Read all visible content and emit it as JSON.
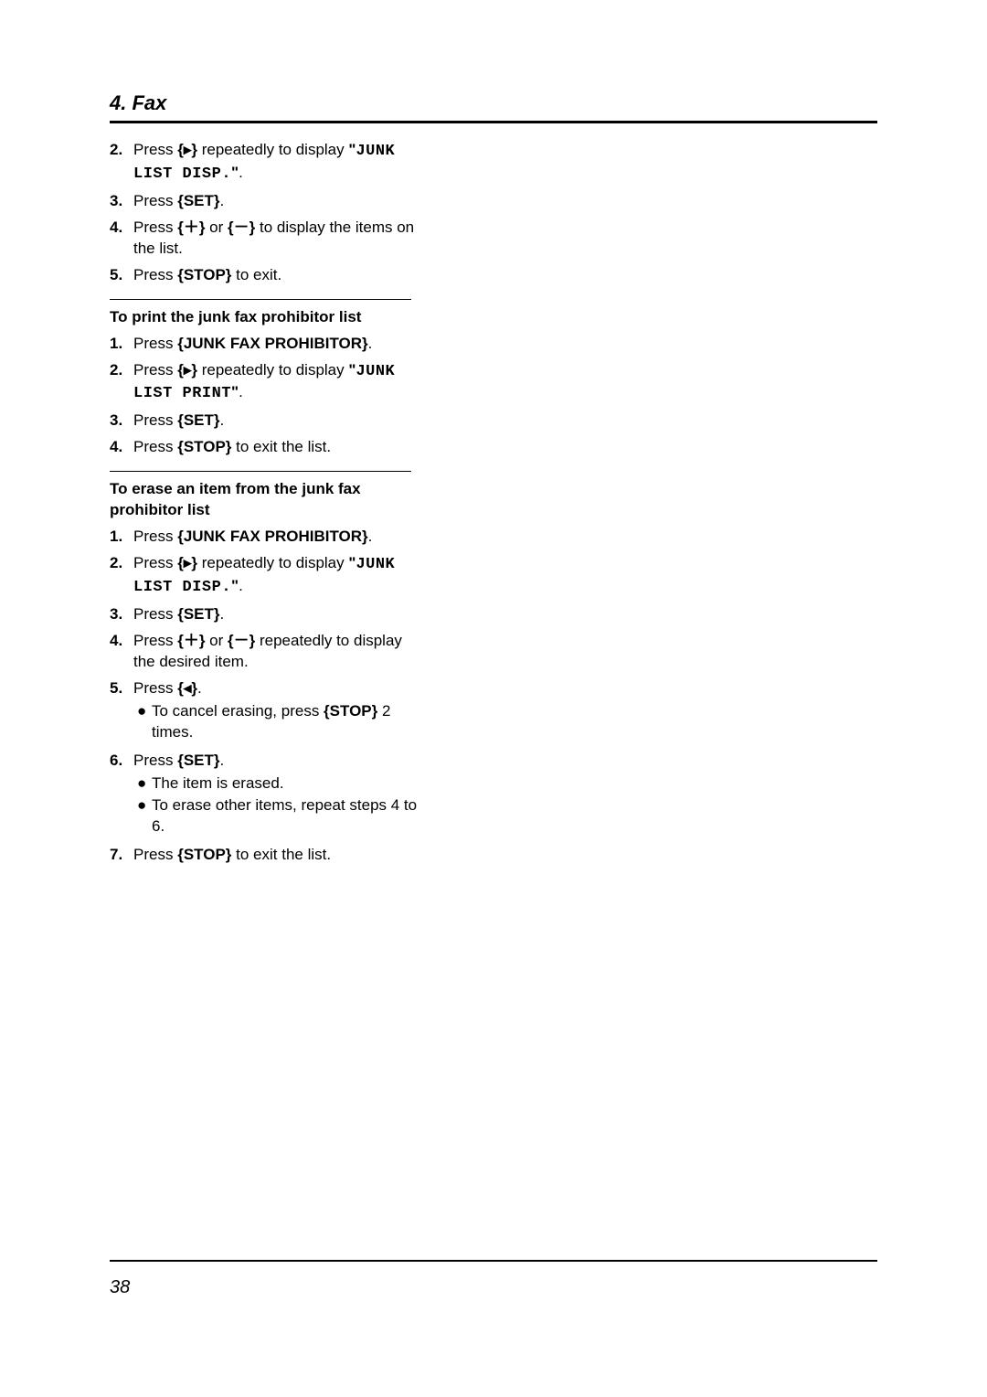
{
  "page": {
    "chapter": "4. Fax",
    "number": "38"
  },
  "section0": {
    "steps": [
      {
        "n": "2.",
        "pre": "Press ",
        "btn": "▸",
        "mid": " repeatedly to display ",
        "q1": "\"",
        "code": "JUNK LIST DISP.",
        "q2": "\"",
        "tail": "."
      },
      {
        "n": "3.",
        "pre": "Press ",
        "btn": "SET",
        "tail": "."
      },
      {
        "n": "4.",
        "pre": "Press ",
        "btn": "＋",
        "mid": " or ",
        "btn2": "－",
        "tail2": " to display the items on the list."
      },
      {
        "n": "5.",
        "pre": "Press ",
        "btn": "STOP",
        "tail": " to exit."
      }
    ]
  },
  "section1": {
    "heading": "To print the junk fax prohibitor list",
    "steps": [
      {
        "n": "1.",
        "pre": "Press ",
        "btn": "JUNK FAX PROHIBITOR",
        "tail": "."
      },
      {
        "n": "2.",
        "pre": "Press ",
        "btn": "▸",
        "mid": " repeatedly to display ",
        "q1": "\"",
        "code": "JUNK LIST PRINT",
        "q2": "\"",
        "tail": "."
      },
      {
        "n": "3.",
        "pre": "Press ",
        "btn": "SET",
        "tail": "."
      },
      {
        "n": "4.",
        "pre": "Press ",
        "btn": "STOP",
        "tail": " to exit the list."
      }
    ]
  },
  "section2": {
    "heading": "To erase an item from the junk fax prohibitor list",
    "steps": [
      {
        "n": "1.",
        "pre": "Press ",
        "btn": "JUNK FAX PROHIBITOR",
        "tail": "."
      },
      {
        "n": "2.",
        "pre": "Press ",
        "btn": "▸",
        "mid": " repeatedly to display ",
        "q1": "\"",
        "code": "JUNK LIST DISP.",
        "q2": "\"",
        "tail": "."
      },
      {
        "n": "3.",
        "pre": "Press ",
        "btn": "SET",
        "tail": "."
      },
      {
        "n": "4.",
        "pre": "Press ",
        "btn": "＋",
        "mid": " or ",
        "btn2": "－",
        "tail2": " repeatedly to display the desired item."
      },
      {
        "n": "5.",
        "pre": "Press ",
        "btn": "◂",
        "tail": ".",
        "bullets": [
          {
            "pre": "To cancel erasing, press ",
            "btn": "STOP",
            "tail": " 2 times."
          }
        ]
      },
      {
        "n": "6.",
        "pre": "Press ",
        "btn": "SET",
        "tail": ".",
        "bullets": [
          {
            "pre": "The item is erased."
          },
          {
            "pre": "To erase other items, repeat steps 4 to 6."
          }
        ]
      },
      {
        "n": "7.",
        "pre": "Press ",
        "btn": "STOP",
        "tail": " to exit the list."
      }
    ]
  }
}
